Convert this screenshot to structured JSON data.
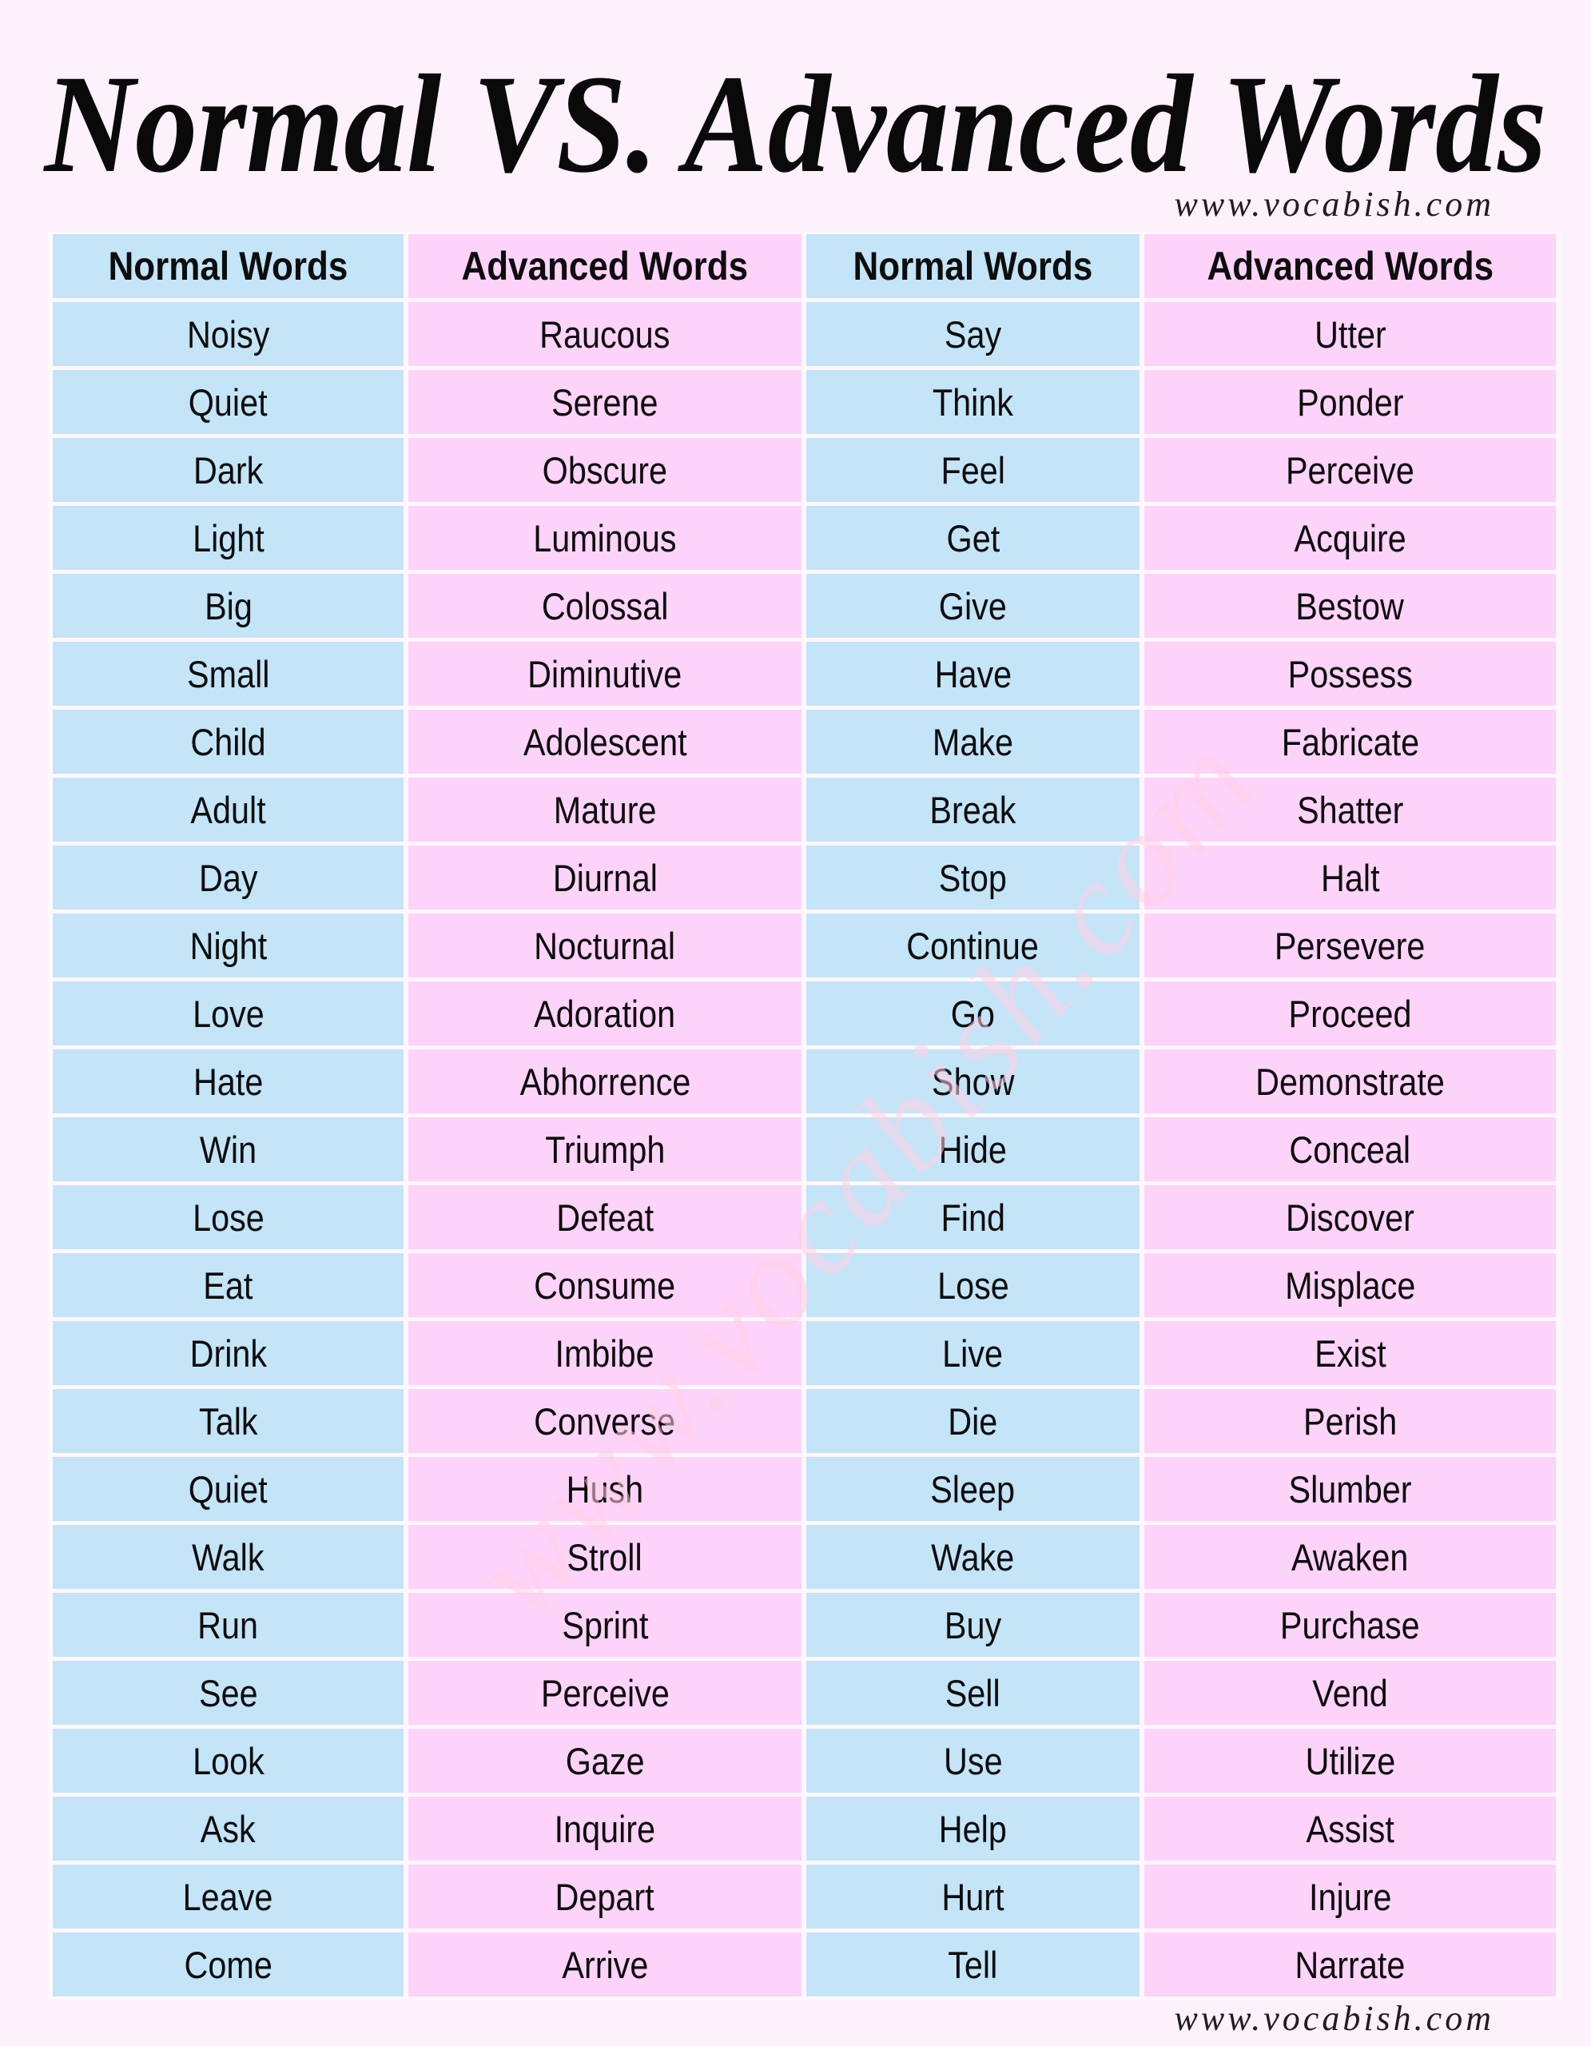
{
  "title": "Normal VS. Advanced Words",
  "website_top": "www.vocabish.com",
  "website_bottom": "www.vocabish.com",
  "watermark_diagonal": "www.vocabish.com",
  "colors": {
    "background": "#fdf1fc",
    "cell_blue": "#c4e4f7",
    "cell_pink": "#fdd3f9",
    "gap": "#fef7fd",
    "text": "#0d0d0d",
    "url_text": "#1e1e1e"
  },
  "table": {
    "headers": [
      "Normal Words",
      "Advanced Words",
      "Normal Words",
      "Advanced Words"
    ],
    "rows": [
      [
        "Noisy",
        "Raucous",
        "Say",
        "Utter"
      ],
      [
        "Quiet",
        "Serene",
        "Think",
        "Ponder"
      ],
      [
        "Dark",
        "Obscure",
        "Feel",
        "Perceive"
      ],
      [
        "Light",
        "Luminous",
        "Get",
        "Acquire"
      ],
      [
        "Big",
        "Colossal",
        "Give",
        "Bestow"
      ],
      [
        "Small",
        "Diminutive",
        "Have",
        "Possess"
      ],
      [
        "Child",
        "Adolescent",
        "Make",
        "Fabricate"
      ],
      [
        "Adult",
        "Mature",
        "Break",
        "Shatter"
      ],
      [
        "Day",
        "Diurnal",
        "Stop",
        "Halt"
      ],
      [
        "Night",
        "Nocturnal",
        "Continue",
        "Persevere"
      ],
      [
        "Love",
        "Adoration",
        "Go",
        "Proceed"
      ],
      [
        "Hate",
        "Abhorrence",
        "Show",
        "Demonstrate"
      ],
      [
        "Win",
        "Triumph",
        "Hide",
        "Conceal"
      ],
      [
        "Lose",
        "Defeat",
        "Find",
        "Discover"
      ],
      [
        "Eat",
        "Consume",
        "Lose",
        "Misplace"
      ],
      [
        "Drink",
        "Imbibe",
        "Live",
        "Exist"
      ],
      [
        "Talk",
        "Converse",
        "Die",
        "Perish"
      ],
      [
        "Quiet",
        "Hush",
        "Sleep",
        "Slumber"
      ],
      [
        "Walk",
        "Stroll",
        "Wake",
        "Awaken"
      ],
      [
        "Run",
        "Sprint",
        "Buy",
        "Purchase"
      ],
      [
        "See",
        "Perceive",
        "Sell",
        "Vend"
      ],
      [
        "Look",
        "Gaze",
        "Use",
        "Utilize"
      ],
      [
        "Ask",
        "Inquire",
        "Help",
        "Assist"
      ],
      [
        "Leave",
        "Depart",
        "Hurt",
        "Injure"
      ],
      [
        "Come",
        "Arrive",
        "Tell",
        "Narrate"
      ]
    ]
  }
}
